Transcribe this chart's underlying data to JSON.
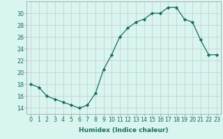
{
  "x": [
    0,
    1,
    2,
    3,
    4,
    5,
    6,
    7,
    8,
    9,
    10,
    11,
    12,
    13,
    14,
    15,
    16,
    17,
    18,
    19,
    20,
    21,
    22,
    23
  ],
  "y": [
    18,
    17.5,
    16,
    15.5,
    15,
    14.5,
    14,
    14.5,
    16.5,
    20.5,
    23,
    26,
    27.5,
    28.5,
    29,
    30,
    30,
    31,
    31,
    29,
    28.5,
    25.5,
    23,
    23
  ],
  "xlabel": "Humidex (Indice chaleur)",
  "xlim": [
    -0.5,
    23.5
  ],
  "ylim": [
    13,
    32
  ],
  "yticks": [
    14,
    16,
    18,
    20,
    22,
    24,
    26,
    28,
    30
  ],
  "xticks": [
    0,
    1,
    2,
    3,
    4,
    5,
    6,
    7,
    8,
    9,
    10,
    11,
    12,
    13,
    14,
    15,
    16,
    17,
    18,
    19,
    20,
    21,
    22,
    23
  ],
  "line_color": "#1a6b5a",
  "marker": "D",
  "marker_size": 2.2,
  "bg_color": "#d8f5f0",
  "grid_color": "#c8c8c8",
  "label_fontsize": 6.5,
  "tick_fontsize": 5.8
}
